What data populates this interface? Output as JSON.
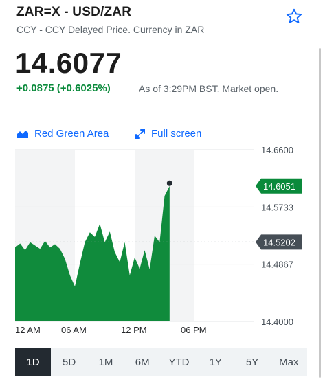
{
  "header": {
    "title": "ZAR=X - USD/ZAR",
    "subtitle": "CCY - CCY Delayed Price. Currency in ZAR"
  },
  "quote": {
    "price": "14.6077",
    "change": "+0.0875 (+0.6025%)",
    "as_of": "As of 3:29PM BST. Market open."
  },
  "toolbar": {
    "chart_type_label": "Red Green Area",
    "fullscreen_label": "Full screen"
  },
  "colors": {
    "accent": "#0f69ff",
    "positive": "#0a8a3b",
    "area_fill": "#108b3c",
    "prev_close_tag": "#464e56"
  },
  "chart_data": {
    "type": "area",
    "x_tick_labels": [
      "12 AM",
      "06 AM",
      "12 PM",
      "06 PM"
    ],
    "y_tick_labels": [
      "14.6600",
      "14.5733",
      "14.4867",
      "14.4000"
    ],
    "ylim": [
      14.4,
      14.66
    ],
    "current_value_label": "14.6051",
    "previous_close_label": "14.5202",
    "current_value": 14.6051,
    "previous_close": 14.5202,
    "x_hours": [
      0,
      0.5,
      1,
      1.5,
      2,
      2.5,
      3,
      3.5,
      4,
      4.5,
      5,
      5.5,
      6,
      6.5,
      7,
      7.5,
      8,
      8.5,
      9,
      9.5,
      10,
      10.5,
      11,
      11.5,
      12,
      12.5,
      13,
      13.5,
      14,
      14.5,
      15,
      15.5
    ],
    "values": [
      14.512,
      14.518,
      14.508,
      14.52,
      14.515,
      14.51,
      14.522,
      14.512,
      14.517,
      14.51,
      14.495,
      14.47,
      14.453,
      14.488,
      14.52,
      14.535,
      14.528,
      14.548,
      14.52,
      14.536,
      14.505,
      14.49,
      14.52,
      14.47,
      14.497,
      14.48,
      14.508,
      14.479,
      14.53,
      14.52,
      14.59,
      14.6051
    ]
  },
  "ranges": [
    "1D",
    "5D",
    "1M",
    "6M",
    "YTD",
    "1Y",
    "5Y",
    "Max"
  ],
  "active_range": "1D"
}
